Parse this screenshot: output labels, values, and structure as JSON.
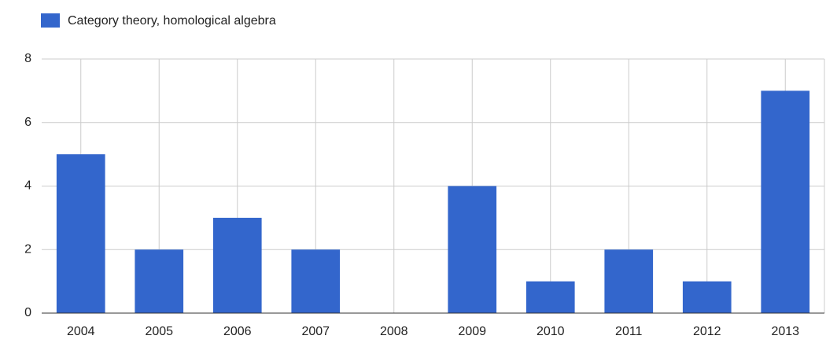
{
  "chart_data": {
    "type": "bar",
    "categories": [
      "2004",
      "2005",
      "2006",
      "2007",
      "2008",
      "2009",
      "2010",
      "2011",
      "2012",
      "2013"
    ],
    "series": [
      {
        "name": "Category theory, homological algebra",
        "color": "#3366cc",
        "values": [
          5,
          2,
          3,
          2,
          0,
          4,
          1,
          2,
          1,
          7
        ]
      }
    ],
    "ylim": [
      0,
      8
    ],
    "yticks": [
      0,
      2,
      4,
      6,
      8
    ],
    "grid": true,
    "legend": "top-left"
  }
}
